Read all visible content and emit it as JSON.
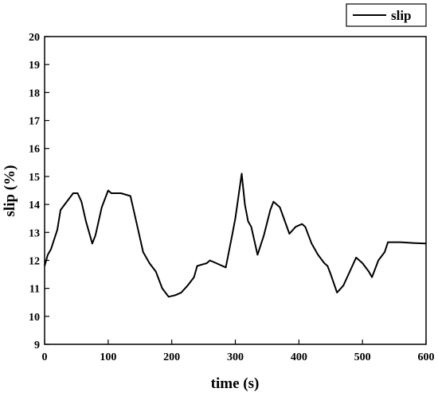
{
  "chart_data": {
    "type": "line",
    "x_label": "time (s)",
    "y_label": "slip (%)",
    "xlim": [
      0,
      600
    ],
    "xticks": [
      0,
      100,
      200,
      300,
      400,
      500,
      600
    ],
    "ylim": [
      9,
      20
    ],
    "yticks": [
      9,
      10,
      11,
      12,
      13,
      14,
      15,
      16,
      17,
      18,
      19,
      20
    ],
    "legend": "top-right",
    "x": [
      0,
      5,
      10,
      20,
      25,
      35,
      45,
      52,
      58,
      65,
      75,
      80,
      90,
      100,
      105,
      120,
      135,
      145,
      155,
      165,
      175,
      185,
      195,
      205,
      215,
      225,
      235,
      240,
      255,
      260,
      270,
      285,
      295,
      300,
      310,
      315,
      320,
      325,
      335,
      345,
      355,
      360,
      370,
      385,
      395,
      405,
      410,
      420,
      430,
      440,
      445,
      450,
      460,
      470,
      480,
      490,
      500,
      510,
      515,
      525,
      535,
      540,
      560,
      580,
      600
    ],
    "series": [
      {
        "name": "slip",
        "color": "#000000",
        "values": [
          11.8,
          12.2,
          12.4,
          13.1,
          13.8,
          14.1,
          14.4,
          14.4,
          14.1,
          13.4,
          12.6,
          12.9,
          13.9,
          14.5,
          14.4,
          14.4,
          14.3,
          13.3,
          12.3,
          11.9,
          11.6,
          11.0,
          10.7,
          10.75,
          10.85,
          11.1,
          11.4,
          11.8,
          11.9,
          12.0,
          11.9,
          11.75,
          12.9,
          13.5,
          15.1,
          14.0,
          13.4,
          13.2,
          12.2,
          12.9,
          13.8,
          14.1,
          13.9,
          12.95,
          13.2,
          13.3,
          13.2,
          12.6,
          12.2,
          11.9,
          11.8,
          11.5,
          10.85,
          11.1,
          11.6,
          12.1,
          11.9,
          11.6,
          11.4,
          12.0,
          12.3,
          12.65,
          12.65,
          12.62,
          12.6
        ]
      }
    ]
  }
}
